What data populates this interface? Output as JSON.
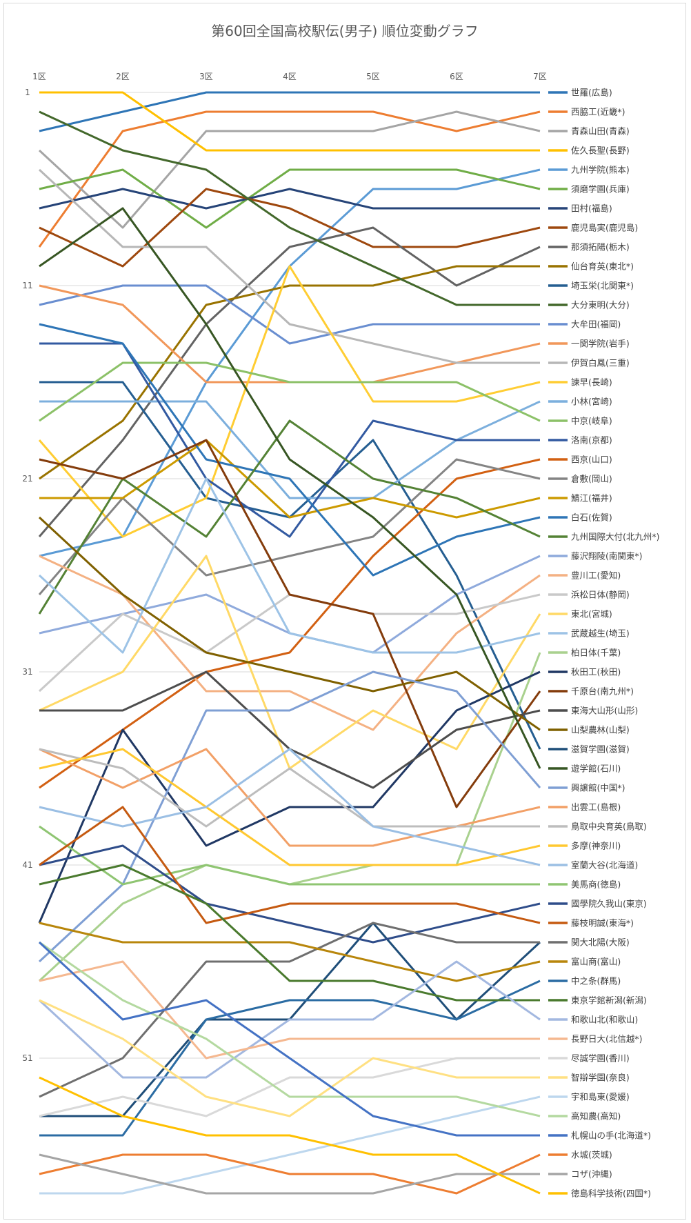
{
  "chart_data": {
    "type": "line",
    "title": "第60回全国高校駅伝(男子) 順位変動グラフ",
    "categories": [
      "1区",
      "2区",
      "3区",
      "4区",
      "5区",
      "6区",
      "7区"
    ],
    "y_tick_labels": [
      "1",
      "11",
      "21",
      "31",
      "41",
      "51"
    ],
    "y_ticks": [
      1,
      11,
      21,
      31,
      41,
      51
    ],
    "ylim": [
      1,
      58
    ],
    "y_reversed": true,
    "grid": true,
    "legend_position": "right",
    "series": [
      {
        "name": "世羅(広島)",
        "color": "#2e75b6",
        "values": [
          3,
          2,
          1,
          1,
          1,
          1,
          1
        ]
      },
      {
        "name": "西脇工(近畿*)",
        "color": "#ed7d31",
        "values": [
          9,
          3,
          2,
          2,
          2,
          3,
          2
        ]
      },
      {
        "name": "青森山田(青森)",
        "color": "#a5a5a5",
        "values": [
          4,
          8,
          3,
          3,
          3,
          2,
          3
        ]
      },
      {
        "name": "佐久長聖(長野)",
        "color": "#ffc000",
        "values": [
          1,
          1,
          4,
          4,
          4,
          4,
          4
        ]
      },
      {
        "name": "九州学院(熊本)",
        "color": "#5b9bd5",
        "values": [
          25,
          24,
          16,
          10,
          6,
          6,
          5
        ]
      },
      {
        "name": "須磨学園(兵庫)",
        "color": "#70ad47",
        "values": [
          6,
          5,
          8,
          5,
          5,
          5,
          6
        ]
      },
      {
        "name": "田村(福島)",
        "color": "#264478",
        "values": [
          7,
          6,
          7,
          6,
          7,
          7,
          7
        ]
      },
      {
        "name": "鹿児島実(鹿児島)",
        "color": "#9e480e",
        "values": [
          8,
          10,
          6,
          7,
          9,
          9,
          8
        ]
      },
      {
        "name": "那須拓陽(栃木)",
        "color": "#636363",
        "values": [
          24,
          19,
          13,
          9,
          8,
          11,
          9
        ]
      },
      {
        "name": "仙台育英(東北*)",
        "color": "#997300",
        "values": [
          21,
          18,
          12,
          11,
          11,
          10,
          10
        ]
      },
      {
        "name": "埼玉栄(北関東*)",
        "color": "#255e91",
        "values": [
          16,
          16,
          22,
          23,
          19,
          26,
          35
        ]
      },
      {
        "name": "大分東明(大分)",
        "color": "#43682b",
        "values": [
          2,
          4,
          5,
          8,
          10,
          12,
          12
        ]
      },
      {
        "name": "大牟田(福岡)",
        "color": "#698ed0",
        "values": [
          12,
          11,
          11,
          14,
          13,
          13,
          13
        ]
      },
      {
        "name": "一関学院(岩手)",
        "color": "#f1975a",
        "values": [
          11,
          12,
          16,
          16,
          16,
          15,
          14
        ]
      },
      {
        "name": "伊賀白鳳(三重)",
        "color": "#b7b7b7",
        "values": [
          5,
          9,
          9,
          13,
          14,
          15,
          15
        ]
      },
      {
        "name": "諫早(長崎)",
        "color": "#ffcd33",
        "values": [
          19,
          24,
          22,
          10,
          17,
          17,
          16
        ]
      },
      {
        "name": "小林(宮崎)",
        "color": "#7cafdd",
        "values": [
          17,
          17,
          17,
          22,
          22,
          19,
          17
        ]
      },
      {
        "name": "中京(岐阜)",
        "color": "#8cc168",
        "values": [
          18,
          15,
          15,
          16,
          16,
          16,
          18
        ]
      },
      {
        "name": "洛南(京都)",
        "color": "#335aa1",
        "values": [
          14,
          14,
          21,
          24,
          18,
          19,
          19
        ]
      },
      {
        "name": "西京(山口)",
        "color": "#d26012",
        "values": [
          37,
          34,
          31,
          30,
          25,
          21,
          20
        ]
      },
      {
        "name": "倉敷(岡山)",
        "color": "#848484",
        "values": [
          27,
          22,
          26,
          25,
          24,
          20,
          21
        ]
      },
      {
        "name": "鯖江(福井)",
        "color": "#cc9a00",
        "values": [
          22,
          22,
          19,
          23,
          22,
          23,
          22
        ]
      },
      {
        "name": "白石(佐賀)",
        "color": "#2e75b6",
        "values": [
          13,
          14,
          20,
          21,
          26,
          24,
          23
        ]
      },
      {
        "name": "九州国際大付(北九州*)",
        "color": "#548235",
        "values": [
          28,
          21,
          24,
          18,
          21,
          22,
          24
        ]
      },
      {
        "name": "藤沢翔陵(南関東*)",
        "color": "#8faadc",
        "values": [
          29,
          28,
          27,
          29,
          30,
          27,
          25
        ]
      },
      {
        "name": "豊川工(愛知)",
        "color": "#f4b183",
        "values": [
          25,
          27,
          32,
          32,
          34,
          29,
          26
        ]
      },
      {
        "name": "浜松日体(静岡)",
        "color": "#c9c9c9",
        "values": [
          32,
          28,
          30,
          27,
          28,
          28,
          27
        ]
      },
      {
        "name": "東北(宮城)",
        "color": "#ffd966",
        "values": [
          33,
          31,
          25,
          36,
          33,
          35,
          28
        ]
      },
      {
        "name": "武蔵越生(埼玉)",
        "color": "#9dc3e6",
        "values": [
          26,
          30,
          21,
          29,
          30,
          30,
          29
        ]
      },
      {
        "name": "柏日体(千葉)",
        "color": "#a9d18e",
        "values": [
          47,
          43,
          41,
          42,
          41,
          41,
          30
        ]
      },
      {
        "name": "秋田工(秋田)",
        "color": "#203864",
        "values": [
          44,
          34,
          40,
          38,
          38,
          33,
          31
        ]
      },
      {
        "name": "千原台(南九州*)",
        "color": "#843c0c",
        "values": [
          20,
          21,
          19,
          27,
          28,
          38,
          32
        ]
      },
      {
        "name": "東海大山形(山形)",
        "color": "#4d4d4d",
        "values": [
          33,
          33,
          31,
          35,
          37,
          34,
          33
        ]
      },
      {
        "name": "山梨農林(山梨)",
        "color": "#7f6000",
        "values": [
          23,
          27,
          30,
          31,
          32,
          31,
          34
        ]
      },
      {
        "name": "滋賀学園(滋賀)",
        "color": "#1f4e79",
        "values": [
          54,
          54,
          49,
          49,
          44,
          49,
          45
        ]
      },
      {
        "name": "遊学館(石川)",
        "color": "#375623",
        "values": [
          10,
          7,
          13,
          20,
          23,
          27,
          36
        ]
      },
      {
        "name": "興譲館(中国*)",
        "color": "#7f9fd4",
        "values": [
          46,
          42,
          33,
          33,
          31,
          32,
          37
        ]
      },
      {
        "name": "出雲工(島根)",
        "color": "#f2a067",
        "values": [
          35,
          37,
          35,
          40,
          40,
          39,
          38
        ]
      },
      {
        "name": "鳥取中央育英(鳥取)",
        "color": "#bdbdbd",
        "values": [
          35,
          36,
          39,
          36,
          39,
          39,
          39
        ]
      },
      {
        "name": "多摩(神奈川)",
        "color": "#ffc830",
        "values": [
          36,
          35,
          38,
          41,
          41,
          41,
          40
        ]
      },
      {
        "name": "室蘭大谷(北海道)",
        "color": "#9bbfe4",
        "values": [
          38,
          39,
          38,
          35,
          39,
          40,
          41
        ]
      },
      {
        "name": "美馬商(徳島)",
        "color": "#8fc572",
        "values": [
          39,
          42,
          41,
          42,
          42,
          42,
          42
        ]
      },
      {
        "name": "國學院久我山(東京)",
        "color": "#2f4d8a",
        "values": [
          41,
          40,
          43,
          44,
          45,
          44,
          43
        ]
      },
      {
        "name": "藤枝明誠(東海*)",
        "color": "#c55a11",
        "values": [
          41,
          38,
          44,
          43,
          43,
          43,
          44
        ]
      },
      {
        "name": "関大北陽(大阪)",
        "color": "#6f6f6f",
        "values": [
          53,
          51,
          46,
          46,
          44,
          45,
          45
        ]
      },
      {
        "name": "富山商(富山)",
        "color": "#b8860b",
        "values": [
          44,
          45,
          45,
          45,
          46,
          47,
          46
        ]
      },
      {
        "name": "中之条(群馬)",
        "color": "#2b6ca3",
        "values": [
          55,
          55,
          49,
          48,
          48,
          49,
          47
        ]
      },
      {
        "name": "東京学館新潟(新潟)",
        "color": "#4a7a2e",
        "values": [
          42,
          41,
          43,
          47,
          47,
          48,
          48
        ]
      },
      {
        "name": "和歌山北(和歌山)",
        "color": "#a3b8e0",
        "values": [
          48,
          52,
          52,
          49,
          49,
          46,
          49
        ]
      },
      {
        "name": "長野日大(北信越*)",
        "color": "#f5b890",
        "values": [
          47,
          46,
          51,
          50,
          50,
          50,
          50
        ]
      },
      {
        "name": "尽誠学園(香川)",
        "color": "#d9d9d9",
        "values": [
          54,
          53,
          54,
          52,
          52,
          51,
          51
        ]
      },
      {
        "name": "智辯学園(奈良)",
        "color": "#ffe082",
        "values": [
          48,
          50,
          53,
          54,
          51,
          52,
          52
        ]
      },
      {
        "name": "宇和島東(愛媛)",
        "color": "#bdd7ee",
        "values": [
          58,
          58,
          57,
          56,
          55,
          54,
          53
        ]
      },
      {
        "name": "高知農(高知)",
        "color": "#b4d9a0",
        "values": [
          45,
          48,
          50,
          53,
          53,
          53,
          54
        ]
      },
      {
        "name": "札幌山の手(北海道*)",
        "color": "#4472c4",
        "values": [
          45,
          49,
          48,
          51,
          54,
          55,
          55
        ]
      },
      {
        "name": "水城(茨城)",
        "color": "#ed7d31",
        "values": [
          57,
          56,
          56,
          57,
          57,
          58,
          56
        ]
      },
      {
        "name": "コザ(沖縄)",
        "color": "#a5a5a5",
        "values": [
          56,
          57,
          58,
          58,
          58,
          57,
          57
        ]
      },
      {
        "name": "徳島科学技術(四国*)",
        "color": "#ffc000",
        "values": [
          52,
          54,
          55,
          55,
          56,
          56,
          58
        ]
      }
    ]
  }
}
